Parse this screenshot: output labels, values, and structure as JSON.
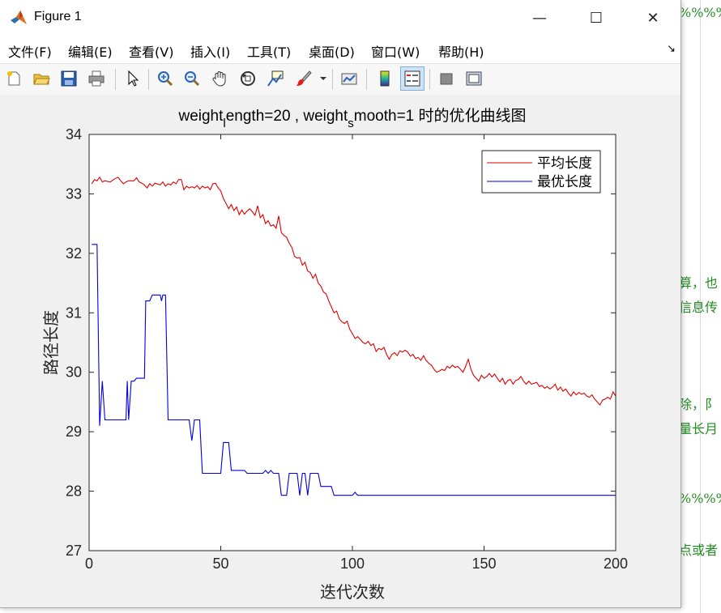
{
  "window": {
    "title": "Figure 1",
    "controls": {
      "minimize": "—",
      "maximize": "☐",
      "close": "✕"
    }
  },
  "menu": {
    "items": [
      "文件(F)",
      "编辑(E)",
      "查看(V)",
      "插入(I)",
      "工具(T)",
      "桌面(D)",
      "窗口(W)",
      "帮助(H)"
    ],
    "dock_arrow": "↘"
  },
  "toolbar": {
    "icons": [
      "new-figure-icon",
      "open-file-icon",
      "save-icon",
      "print-icon",
      "pointer-icon",
      "zoom-in-icon",
      "zoom-out-icon",
      "pan-hand-icon",
      "rotate-3d-icon",
      "data-cursor-icon",
      "brush-icon",
      "brush-dropdown-icon",
      "link-plot-icon",
      "colorbar-icon",
      "legend-icon",
      "hide-plot-tools-icon",
      "show-plot-tools-icon"
    ]
  },
  "background_editor": {
    "lines": [
      "%%%%%",
      "算，也",
      "信息传",
      "除，阝",
      "量长月",
      "%%%%%",
      "点或者"
    ]
  },
  "chart_data": {
    "type": "line",
    "title": {
      "part1": "weight",
      "sub1": "l",
      "part2": "ength=20 , weight",
      "sub2": "s",
      "part3": "mooth=1 时的优化曲线图"
    },
    "xlabel": "迭代次数",
    "ylabel": "路径长度",
    "xlim": [
      0,
      200
    ],
    "ylim": [
      27,
      34
    ],
    "xticks": [
      0,
      50,
      100,
      150,
      200
    ],
    "yticks": [
      27,
      28,
      29,
      30,
      31,
      32,
      33,
      34
    ],
    "legend_position": "top-right",
    "series": [
      {
        "name": "平均长度",
        "color": "#e00000",
        "points": [
          [
            1,
            33.17
          ],
          [
            2,
            33.24
          ],
          [
            3,
            33.22
          ],
          [
            4,
            33.28
          ],
          [
            5,
            33.2
          ],
          [
            6,
            33.22
          ],
          [
            8,
            33.2
          ],
          [
            10,
            33.26
          ],
          [
            11,
            33.28
          ],
          [
            12,
            33.22
          ],
          [
            13,
            33.17
          ],
          [
            14,
            33.2
          ],
          [
            15,
            33.22
          ],
          [
            17,
            33.22
          ],
          [
            18,
            33.27
          ],
          [
            19,
            33.2
          ],
          [
            20,
            33.18
          ],
          [
            21,
            33.15
          ],
          [
            22,
            33.1
          ],
          [
            23,
            33.17
          ],
          [
            24,
            33.13
          ],
          [
            25,
            33.18
          ],
          [
            27,
            33.15
          ],
          [
            28,
            33.2
          ],
          [
            29,
            33.13
          ],
          [
            30,
            33.17
          ],
          [
            31,
            33.15
          ],
          [
            32,
            33.2
          ],
          [
            33,
            33.17
          ],
          [
            34,
            33.24
          ],
          [
            35,
            33.24
          ],
          [
            36,
            33.07
          ],
          [
            37,
            33.13
          ],
          [
            38,
            33.1
          ],
          [
            39,
            33.12
          ],
          [
            40,
            33.1
          ],
          [
            41,
            33.14
          ],
          [
            42,
            33.08
          ],
          [
            43,
            33.13
          ],
          [
            44,
            33.1
          ],
          [
            45,
            33.12
          ],
          [
            46,
            33.07
          ],
          [
            47,
            33.17
          ],
          [
            48,
            33.18
          ],
          [
            49,
            33.1
          ],
          [
            50,
            33.05
          ],
          [
            51,
            32.92
          ],
          [
            52,
            32.84
          ],
          [
            53,
            32.75
          ],
          [
            54,
            32.82
          ],
          [
            55,
            32.72
          ],
          [
            56,
            32.78
          ],
          [
            57,
            32.65
          ],
          [
            58,
            32.73
          ],
          [
            59,
            32.66
          ],
          [
            60,
            32.71
          ],
          [
            61,
            32.75
          ],
          [
            62,
            32.7
          ],
          [
            63,
            32.64
          ],
          [
            64,
            32.8
          ],
          [
            65,
            32.6
          ],
          [
            66,
            32.65
          ],
          [
            67,
            32.5
          ],
          [
            68,
            32.55
          ],
          [
            69,
            32.46
          ],
          [
            70,
            32.48
          ],
          [
            71,
            32.42
          ],
          [
            72,
            32.63
          ],
          [
            73,
            32.35
          ],
          [
            74,
            32.3
          ],
          [
            75,
            32.27
          ],
          [
            76,
            32.17
          ],
          [
            77,
            32.1
          ],
          [
            78,
            31.95
          ],
          [
            79,
            31.92
          ],
          [
            80,
            31.93
          ],
          [
            81,
            31.8
          ],
          [
            82,
            31.85
          ],
          [
            83,
            31.7
          ],
          [
            84,
            31.68
          ],
          [
            85,
            31.58
          ],
          [
            86,
            31.65
          ],
          [
            87,
            31.5
          ],
          [
            88,
            31.45
          ],
          [
            89,
            31.35
          ],
          [
            90,
            31.32
          ],
          [
            91,
            31.2
          ],
          [
            92,
            31.1
          ],
          [
            93,
            31.0
          ],
          [
            94,
            31.03
          ],
          [
            95,
            30.9
          ],
          [
            96,
            30.85
          ],
          [
            97,
            30.82
          ],
          [
            98,
            30.86
          ],
          [
            99,
            30.72
          ],
          [
            100,
            30.65
          ],
          [
            101,
            30.57
          ],
          [
            102,
            30.6
          ],
          [
            103,
            30.55
          ],
          [
            104,
            30.5
          ],
          [
            105,
            30.48
          ],
          [
            106,
            30.52
          ],
          [
            107,
            30.45
          ],
          [
            108,
            30.48
          ],
          [
            109,
            30.35
          ],
          [
            110,
            30.4
          ],
          [
            111,
            30.38
          ],
          [
            112,
            30.42
          ],
          [
            113,
            30.3
          ],
          [
            114,
            30.22
          ],
          [
            115,
            30.3
          ],
          [
            116,
            30.33
          ],
          [
            117,
            30.28
          ],
          [
            118,
            30.36
          ],
          [
            119,
            30.34
          ],
          [
            120,
            30.37
          ],
          [
            121,
            30.34
          ],
          [
            122,
            30.27
          ],
          [
            123,
            30.3
          ],
          [
            124,
            30.23
          ],
          [
            125,
            30.25
          ],
          [
            126,
            30.2
          ],
          [
            127,
            30.28
          ],
          [
            128,
            30.2
          ],
          [
            129,
            30.15
          ],
          [
            130,
            30.12
          ],
          [
            131,
            30.05
          ],
          [
            132,
            30.0
          ],
          [
            133,
            30.02
          ],
          [
            134,
            30.05
          ],
          [
            135,
            30.03
          ],
          [
            136,
            30.1
          ],
          [
            137,
            30.07
          ],
          [
            138,
            30.12
          ],
          [
            139,
            30.08
          ],
          [
            140,
            30.1
          ],
          [
            141,
            30.05
          ],
          [
            142,
            30.0
          ],
          [
            143,
            30.1
          ],
          [
            144,
            30.22
          ],
          [
            145,
            30.05
          ],
          [
            146,
            29.95
          ],
          [
            147,
            29.9
          ],
          [
            148,
            29.85
          ],
          [
            149,
            29.95
          ],
          [
            150,
            29.9
          ],
          [
            151,
            29.93
          ],
          [
            152,
            29.98
          ],
          [
            153,
            29.92
          ],
          [
            154,
            29.97
          ],
          [
            155,
            29.9
          ],
          [
            156,
            29.84
          ],
          [
            157,
            29.9
          ],
          [
            158,
            29.8
          ],
          [
            159,
            29.86
          ],
          [
            160,
            29.88
          ],
          [
            161,
            29.8
          ],
          [
            162,
            29.86
          ],
          [
            163,
            29.88
          ],
          [
            164,
            29.93
          ],
          [
            165,
            29.85
          ],
          [
            166,
            29.8
          ],
          [
            167,
            29.85
          ],
          [
            168,
            29.8
          ],
          [
            170,
            29.83
          ],
          [
            171,
            29.76
          ],
          [
            172,
            29.78
          ],
          [
            173,
            29.73
          ],
          [
            174,
            29.76
          ],
          [
            175,
            29.72
          ],
          [
            176,
            29.75
          ],
          [
            177,
            29.8
          ],
          [
            178,
            29.7
          ],
          [
            179,
            29.75
          ],
          [
            180,
            29.68
          ],
          [
            181,
            29.72
          ],
          [
            182,
            29.65
          ],
          [
            183,
            29.6
          ],
          [
            184,
            29.67
          ],
          [
            185,
            29.62
          ],
          [
            186,
            29.66
          ],
          [
            187,
            29.63
          ],
          [
            188,
            29.65
          ],
          [
            189,
            29.6
          ],
          [
            190,
            29.58
          ],
          [
            191,
            29.62
          ],
          [
            192,
            29.55
          ],
          [
            193,
            29.5
          ],
          [
            194,
            29.45
          ],
          [
            195,
            29.53
          ],
          [
            196,
            29.55
          ],
          [
            197,
            29.58
          ],
          [
            198,
            29.55
          ],
          [
            199,
            29.67
          ],
          [
            200,
            29.6
          ]
        ]
      },
      {
        "name": "最优长度",
        "color": "#0000e0",
        "points": [
          [
            1,
            32.15
          ],
          [
            3,
            32.15
          ],
          [
            4,
            29.1
          ],
          [
            5,
            29.85
          ],
          [
            6,
            29.2
          ],
          [
            14,
            29.2
          ],
          [
            14.5,
            29.85
          ],
          [
            15,
            29.2
          ],
          [
            16,
            29.85
          ],
          [
            17,
            29.85
          ],
          [
            18,
            29.9
          ],
          [
            21,
            29.9
          ],
          [
            21.5,
            31.2
          ],
          [
            23,
            31.2
          ],
          [
            24,
            31.3
          ],
          [
            27,
            31.3
          ],
          [
            27.5,
            31.2
          ],
          [
            28,
            31.3
          ],
          [
            29,
            31.3
          ],
          [
            30,
            29.2
          ],
          [
            38,
            29.2
          ],
          [
            39,
            28.85
          ],
          [
            40,
            29.2
          ],
          [
            42,
            29.2
          ],
          [
            43,
            28.3
          ],
          [
            50,
            28.3
          ],
          [
            51,
            28.82
          ],
          [
            53,
            28.82
          ],
          [
            54,
            28.35
          ],
          [
            59,
            28.35
          ],
          [
            60,
            28.3
          ],
          [
            66,
            28.3
          ],
          [
            67,
            28.35
          ],
          [
            68,
            28.3
          ],
          [
            69,
            28.35
          ],
          [
            70,
            28.3
          ],
          [
            72,
            28.3
          ],
          [
            73,
            27.93
          ],
          [
            75,
            27.93
          ],
          [
            76,
            28.3
          ],
          [
            79,
            28.3
          ],
          [
            80,
            27.93
          ],
          [
            81,
            28.3
          ],
          [
            82,
            28.3
          ],
          [
            83,
            27.93
          ],
          [
            84,
            28.3
          ],
          [
            87,
            28.3
          ],
          [
            88,
            28.08
          ],
          [
            92,
            28.08
          ],
          [
            93,
            27.93
          ],
          [
            100,
            27.93
          ],
          [
            101,
            27.98
          ],
          [
            102,
            27.93
          ],
          [
            200,
            27.93
          ]
        ]
      }
    ]
  }
}
